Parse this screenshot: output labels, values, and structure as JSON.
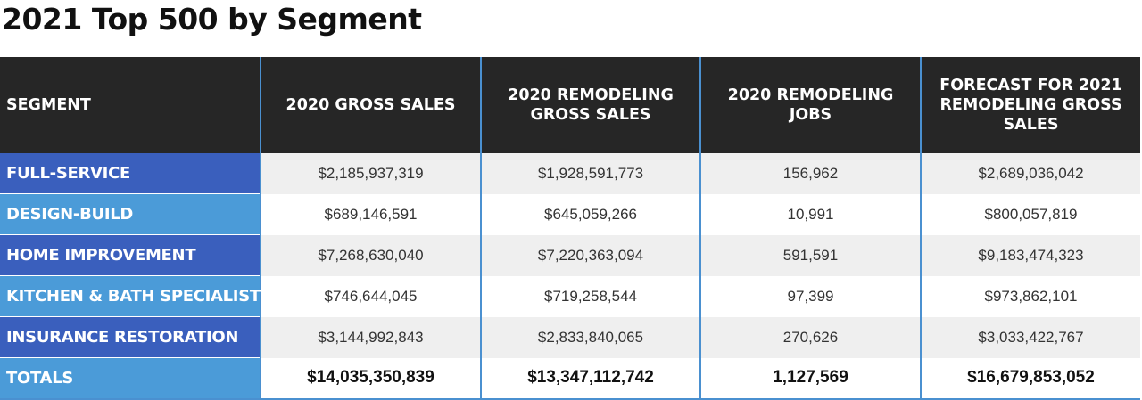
{
  "title": "2021 Top 500 by Segment",
  "table": {
    "headers": [
      "SEGMENT",
      "2020 GROSS SALES",
      "2020 REMODELING GROSS SALES",
      "2020 REMODELING JOBS",
      "FORECAST FOR 2021 REMODELING GROSS SALES"
    ],
    "rows": [
      {
        "segment": "FULL-SERVICE",
        "gross_sales": "$2,185,937,319",
        "remodeling_gross_sales": "$1,928,591,773",
        "remodeling_jobs": "156,962",
        "forecast_2021": "$2,689,036,042"
      },
      {
        "segment": "DESIGN-BUILD",
        "gross_sales": "$689,146,591",
        "remodeling_gross_sales": "$645,059,266",
        "remodeling_jobs": "10,991",
        "forecast_2021": "$800,057,819"
      },
      {
        "segment": "HOME IMPROVEMENT",
        "gross_sales": "$7,268,630,040",
        "remodeling_gross_sales": "$7,220,363,094",
        "remodeling_jobs": "591,591",
        "forecast_2021": "$9,183,474,323"
      },
      {
        "segment": "KITCHEN & BATH SPECIALIST",
        "gross_sales": "$746,644,045",
        "remodeling_gross_sales": "$719,258,544",
        "remodeling_jobs": "97,399",
        "forecast_2021": "$973,862,101"
      },
      {
        "segment": "INSURANCE RESTORATION",
        "gross_sales": "$3,144,992,843",
        "remodeling_gross_sales": "$2,833,840,065",
        "remodeling_jobs": "270,626",
        "forecast_2021": "$3,033,422,767"
      }
    ],
    "totals": {
      "segment": "TOTALS",
      "gross_sales": "$14,035,350,839",
      "remodeling_gross_sales": "$13,347,112,742",
      "remodeling_jobs": "1,127,569",
      "forecast_2021": "$16,679,853,052"
    }
  },
  "colors": {
    "header_bg": "#262626",
    "label_dark_blue": "#3a5fbd",
    "label_light_blue": "#4b9bd8",
    "divider_blue": "#4a90d0",
    "row_gray": "#efefef"
  }
}
